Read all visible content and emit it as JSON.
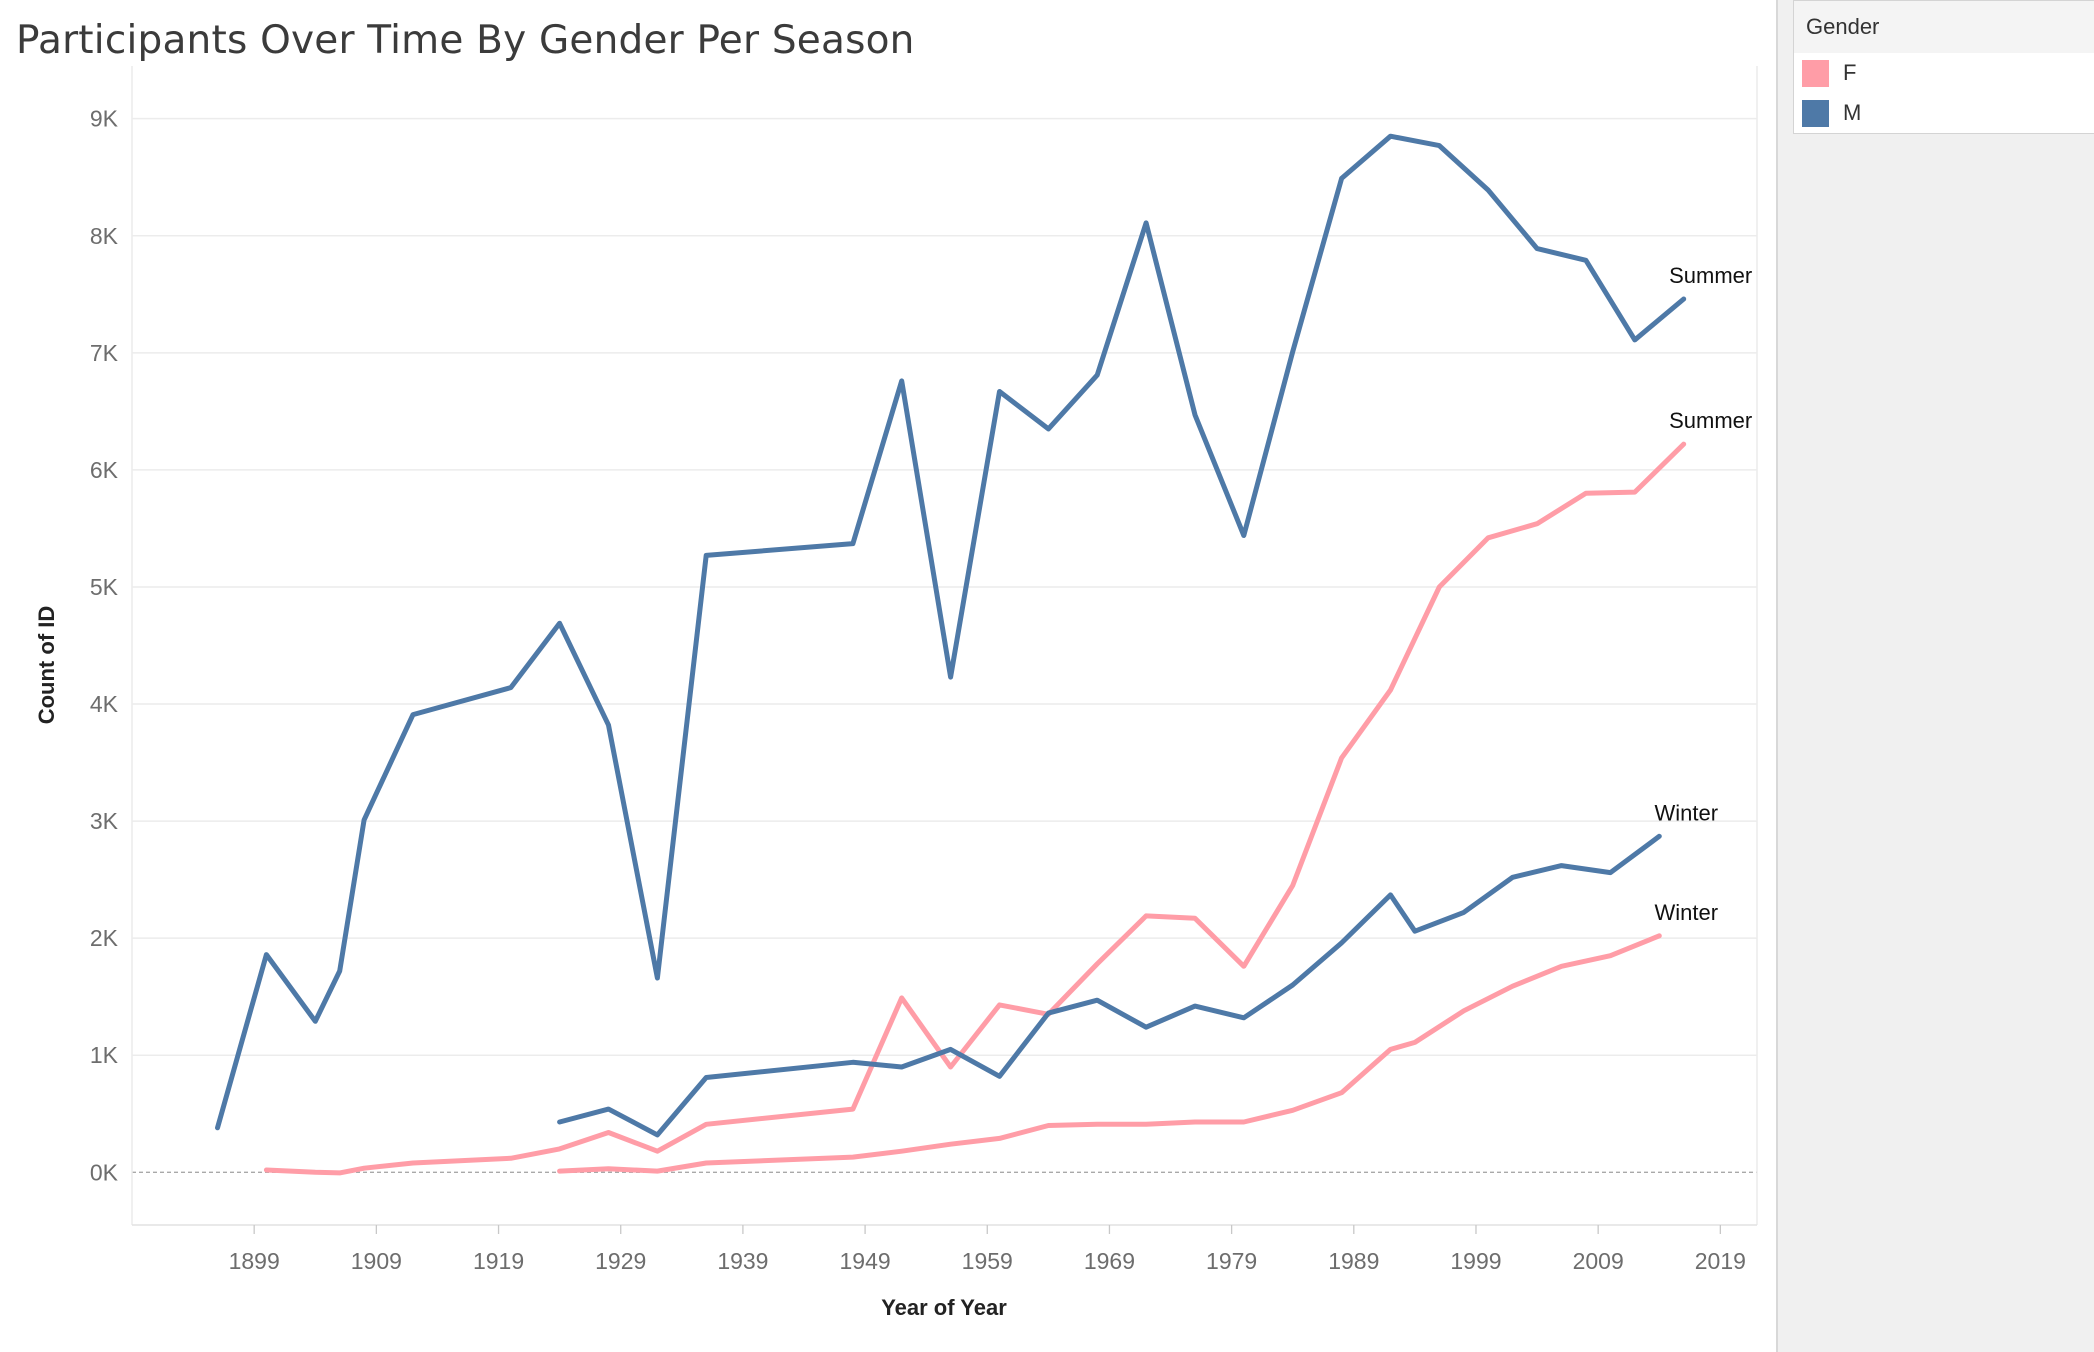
{
  "title": "Participants Over Time By Gender Per Season",
  "legend": {
    "title": "Gender",
    "items": [
      {
        "label": "F",
        "color": "#ff9da7"
      },
      {
        "label": "M",
        "color": "#4e79a7"
      }
    ]
  },
  "chart_data": {
    "type": "line",
    "title": "Participants Over Time By Gender Per Season",
    "xlabel": "Year of Year",
    "ylabel": "Count of ID",
    "xlim": [
      1889,
      2022
    ],
    "ylim": [
      -450,
      9450
    ],
    "x_ticks": [
      1899,
      1909,
      1919,
      1929,
      1939,
      1949,
      1959,
      1969,
      1979,
      1989,
      1999,
      2009,
      2019
    ],
    "y_ticks": [
      0,
      1000,
      2000,
      3000,
      4000,
      5000,
      6000,
      7000,
      8000,
      9000
    ],
    "y_tick_labels": [
      "0K",
      "1K",
      "2K",
      "3K",
      "4K",
      "5K",
      "6K",
      "7K",
      "8K",
      "9K"
    ],
    "zero_reference_line": true,
    "grid": "horizontal",
    "legend_position": "right",
    "series": [
      {
        "gender": "M",
        "season": "Summer",
        "color": "#4e79a7",
        "end_label": "Summer",
        "x": [
          1896,
          1900,
          1904,
          1906,
          1908,
          1912,
          1920,
          1924,
          1928,
          1932,
          1936,
          1948,
          1952,
          1956,
          1960,
          1964,
          1968,
          1972,
          1976,
          1980,
          1984,
          1988,
          1992,
          1996,
          2000,
          2004,
          2008,
          2012,
          2016
        ],
        "y": [
          380,
          1860,
          1290,
          1720,
          3010,
          3910,
          4140,
          4690,
          3820,
          1660,
          5270,
          5370,
          6760,
          4230,
          6670,
          6350,
          6810,
          8110,
          6470,
          5440,
          7010,
          8490,
          8850,
          8770,
          8390,
          7890,
          7790,
          7110,
          7460
        ]
      },
      {
        "gender": "F",
        "season": "Summer",
        "color": "#ff9da7",
        "end_label": "Summer",
        "x": [
          1900,
          1904,
          1906,
          1908,
          1912,
          1920,
          1924,
          1928,
          1932,
          1936,
          1948,
          1952,
          1956,
          1960,
          1964,
          1968,
          1972,
          1976,
          1980,
          1984,
          1988,
          1992,
          1996,
          2000,
          2004,
          2008,
          2012,
          2016
        ],
        "y": [
          20,
          0,
          -5,
          35,
          80,
          120,
          200,
          340,
          180,
          410,
          540,
          1490,
          900,
          1430,
          1350,
          1780,
          2190,
          2170,
          1760,
          2450,
          3540,
          4120,
          5000,
          5420,
          5540,
          5800,
          5810,
          6220
        ]
      },
      {
        "gender": "M",
        "season": "Winter",
        "color": "#4e79a7",
        "end_label": "Winter",
        "x": [
          1924,
          1928,
          1932,
          1936,
          1948,
          1952,
          1956,
          1960,
          1964,
          1968,
          1972,
          1976,
          1980,
          1984,
          1988,
          1992,
          1994,
          1998,
          2002,
          2006,
          2010,
          2014
        ],
        "y": [
          430,
          540,
          320,
          810,
          940,
          900,
          1050,
          820,
          1360,
          1470,
          1240,
          1420,
          1320,
          1600,
          1960,
          2370,
          2060,
          2220,
          2520,
          2620,
          2560,
          2870
        ]
      },
      {
        "gender": "F",
        "season": "Winter",
        "color": "#ff9da7",
        "end_label": "Winter",
        "x": [
          1924,
          1928,
          1932,
          1936,
          1948,
          1952,
          1956,
          1960,
          1964,
          1968,
          1972,
          1976,
          1980,
          1984,
          1988,
          1992,
          1994,
          1998,
          2002,
          2006,
          2010,
          2014
        ],
        "y": [
          10,
          30,
          10,
          80,
          130,
          180,
          240,
          290,
          400,
          410,
          410,
          430,
          430,
          530,
          680,
          1050,
          1110,
          1380,
          1590,
          1760,
          1850,
          2020
        ]
      }
    ]
  }
}
